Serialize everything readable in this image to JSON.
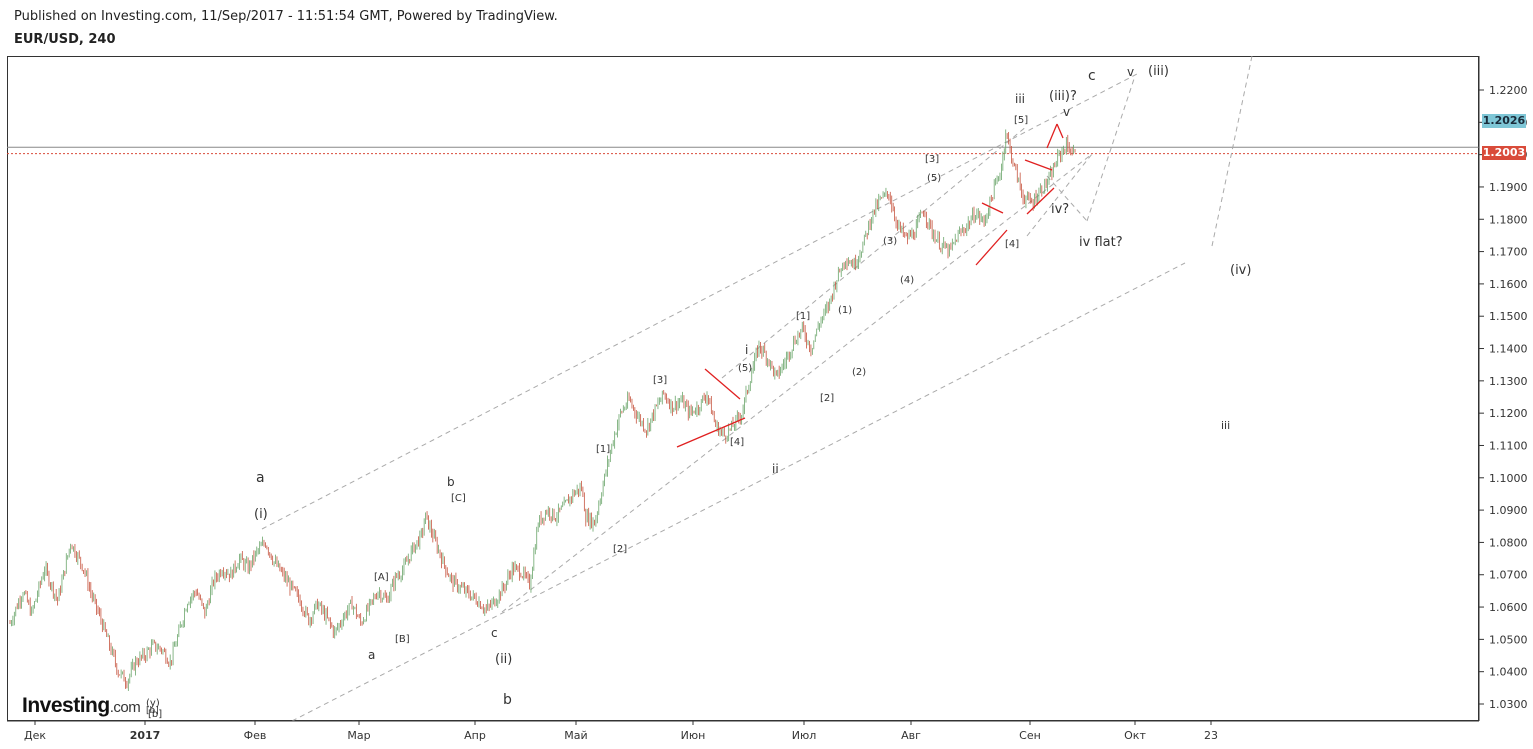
{
  "header": {
    "published": "Published on Investing.com, 11/Sep/2017 - 11:51:54 GMT, Powered by TradingView.",
    "symbol": "EUR/USD, 240"
  },
  "price_tags": {
    "blue": "1.2026",
    "red": "1.2003"
  },
  "logo": {
    "text": "Investing",
    "suffix": ".com",
    "sub": "[b]"
  },
  "colors": {
    "up_candle": "#6aa56a",
    "down_candle": "#c6543f",
    "channel": "#aaaaaa",
    "wave_red": "#e02020",
    "orange": "#f0a020",
    "price_line": "#d94b3a",
    "tag_blue": "#7ec6d6"
  },
  "chart_data": {
    "type": "candlestick",
    "y_ticks": [
      "1.2200",
      "1.2100",
      "1.2000",
      "1.1900",
      "1.1800",
      "1.1700",
      "1.1600",
      "1.1500",
      "1.1400",
      "1.1300",
      "1.1200",
      "1.1100",
      "1.1000",
      "1.0900",
      "1.0800",
      "1.0700",
      "1.0600",
      "1.0500",
      "1.0400",
      "1.0300"
    ],
    "ylim": [
      1.026,
      1.229
    ],
    "x_ticks": [
      "Дек",
      "2017",
      "Фев",
      "Мар",
      "Апр",
      "Май",
      "Июн",
      "Июл",
      "Авг",
      "Сен",
      "Окт",
      "23"
    ],
    "price_path": [
      [
        0,
        1.055
      ],
      [
        3,
        1.065
      ],
      [
        5,
        1.058
      ],
      [
        8,
        1.072
      ],
      [
        11,
        1.062
      ],
      [
        14,
        1.08
      ],
      [
        17,
        1.072
      ],
      [
        19,
        1.063
      ],
      [
        21,
        1.056
      ],
      [
        23,
        1.048
      ],
      [
        25,
        1.04
      ],
      [
        27,
        1.037
      ],
      [
        29,
        1.043
      ],
      [
        31,
        1.045
      ],
      [
        33,
        1.048
      ],
      [
        35,
        1.047
      ],
      [
        37,
        1.043
      ],
      [
        39,
        1.052
      ],
      [
        41,
        1.062
      ],
      [
        43,
        1.065
      ],
      [
        45,
        1.058
      ],
      [
        47,
        1.068
      ],
      [
        49,
        1.072
      ],
      [
        51,
        1.07
      ],
      [
        53,
        1.075
      ],
      [
        55,
        1.072
      ],
      [
        57,
        1.077
      ],
      [
        59,
        1.08
      ],
      [
        61,
        1.074
      ],
      [
        63,
        1.07
      ],
      [
        65,
        1.066
      ],
      [
        67,
        1.062
      ],
      [
        69,
        1.056
      ],
      [
        71,
        1.061
      ],
      [
        73,
        1.057
      ],
      [
        75,
        1.052
      ],
      [
        77,
        1.057
      ],
      [
        79,
        1.061
      ],
      [
        81,
        1.055
      ],
      [
        83,
        1.06
      ],
      [
        85,
        1.065
      ],
      [
        87,
        1.062
      ],
      [
        89,
        1.069
      ],
      [
        91,
        1.072
      ],
      [
        93,
        1.078
      ],
      [
        95,
        1.082
      ],
      [
        96,
        1.088
      ],
      [
        98,
        1.081
      ],
      [
        100,
        1.074
      ],
      [
        102,
        1.068
      ],
      [
        104,
        1.066
      ],
      [
        106,
        1.064
      ],
      [
        108,
        1.062
      ],
      [
        110,
        1.059
      ],
      [
        112,
        1.062
      ],
      [
        114,
        1.066
      ],
      [
        116,
        1.072
      ],
      [
        118,
        1.071
      ],
      [
        120,
        1.067
      ],
      [
        122,
        1.086
      ],
      [
        124,
        1.09
      ],
      [
        126,
        1.088
      ],
      [
        128,
        1.091
      ],
      [
        130,
        1.095
      ],
      [
        132,
        1.097
      ],
      [
        133,
        1.088
      ],
      [
        135,
        1.086
      ],
      [
        137,
        1.098
      ],
      [
        139,
        1.11
      ],
      [
        141,
        1.12
      ],
      [
        143,
        1.124
      ],
      [
        145,
        1.119
      ],
      [
        147,
        1.115
      ],
      [
        149,
        1.121
      ],
      [
        151,
        1.126
      ],
      [
        153,
        1.122
      ],
      [
        155,
        1.124
      ],
      [
        157,
        1.12
      ],
      [
        159,
        1.122
      ],
      [
        161,
        1.126
      ],
      [
        163,
        1.116
      ],
      [
        165,
        1.113
      ],
      [
        167,
        1.116
      ],
      [
        169,
        1.12
      ],
      [
        171,
        1.131
      ],
      [
        173,
        1.141
      ],
      [
        175,
        1.137
      ],
      [
        177,
        1.131
      ],
      [
        179,
        1.136
      ],
      [
        181,
        1.142
      ],
      [
        183,
        1.146
      ],
      [
        185,
        1.14
      ],
      [
        187,
        1.148
      ],
      [
        189,
        1.153
      ],
      [
        191,
        1.162
      ],
      [
        193,
        1.168
      ],
      [
        195,
        1.166
      ],
      [
        197,
        1.172
      ],
      [
        199,
        1.181
      ],
      [
        201,
        1.186
      ],
      [
        203,
        1.188
      ],
      [
        205,
        1.178
      ],
      [
        207,
        1.174
      ],
      [
        209,
        1.176
      ],
      [
        211,
        1.183
      ],
      [
        213,
        1.176
      ],
      [
        215,
        1.172
      ],
      [
        217,
        1.17
      ],
      [
        219,
        1.175
      ],
      [
        221,
        1.178
      ],
      [
        223,
        1.182
      ],
      [
        225,
        1.179
      ],
      [
        227,
        1.188
      ],
      [
        229,
        1.196
      ],
      [
        230,
        1.207
      ],
      [
        232,
        1.196
      ],
      [
        234,
        1.187
      ],
      [
        236,
        1.185
      ],
      [
        238,
        1.189
      ],
      [
        240,
        1.192
      ],
      [
        242,
        1.199
      ],
      [
        244,
        1.203
      ],
      [
        246,
        1.2
      ]
    ],
    "wave_labels": [
      "a",
      "(i)",
      "b",
      "[C]",
      "[A]",
      "[B]",
      "a",
      "c",
      "(ii)",
      "b",
      "(y)",
      "[b]",
      "[1]",
      "[2]",
      "[3]",
      "[4]",
      "(5)",
      "i",
      "ii",
      "[1]",
      "[2]",
      "(1)",
      "(2)",
      "(3)",
      "(4)",
      "[3]",
      "(5)",
      "[4]",
      "[5]",
      "iii",
      "(iii)?",
      "v",
      "iv?",
      "iv flat?",
      "c",
      "v",
      "(iii)",
      "(iv)",
      "iii"
    ]
  }
}
